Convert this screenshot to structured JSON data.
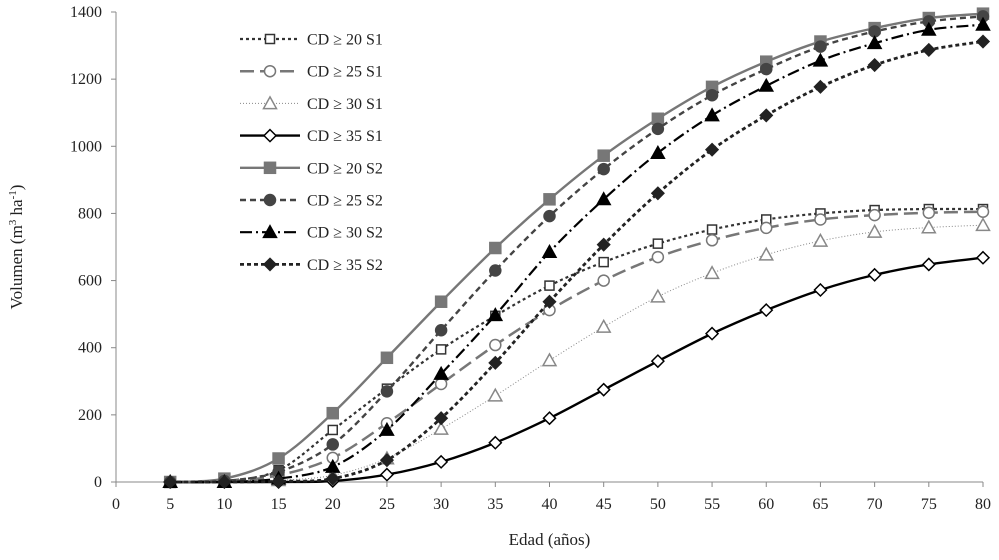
{
  "chart_data": {
    "type": "line",
    "xlabel": "Edad (años)",
    "ylabel_parts": [
      "Volumen (m",
      "3",
      " ha",
      "-1",
      ")"
    ],
    "xlim": [
      0,
      80
    ],
    "ylim": [
      0,
      1400
    ],
    "x_ticks": [
      0,
      5,
      10,
      15,
      20,
      25,
      30,
      35,
      40,
      45,
      50,
      55,
      60,
      65,
      70,
      75,
      80
    ],
    "y_ticks": [
      0,
      200,
      400,
      600,
      800,
      1000,
      1200,
      1400
    ],
    "grid": false,
    "legend_position": "top-left",
    "x": [
      5,
      10,
      15,
      20,
      25,
      30,
      35,
      40,
      45,
      50,
      55,
      60,
      65,
      70,
      75,
      80
    ],
    "series": [
      {
        "name": "CD ≥ 20 S1",
        "color": "#333333",
        "dash": "dotted",
        "marker": "square-open",
        "values": [
          0,
          3,
          35,
          155,
          278,
          395,
          495,
          585,
          655,
          710,
          752,
          782,
          800,
          810,
          813,
          813
        ]
      },
      {
        "name": "CD ≥ 25 S1",
        "color": "#777777",
        "dash": "long-dash",
        "marker": "circle-open",
        "values": [
          0,
          2,
          20,
          72,
          175,
          292,
          408,
          512,
          600,
          670,
          720,
          757,
          782,
          795,
          802,
          805
        ]
      },
      {
        "name": "CD ≥ 30 S1",
        "color": "#888888",
        "dash": "thin",
        "marker": "triangle-open",
        "values": [
          0,
          0,
          5,
          20,
          70,
          158,
          257,
          362,
          462,
          552,
          622,
          677,
          718,
          745,
          758,
          765
        ]
      },
      {
        "name": "CD ≥ 35 S1",
        "color": "#000000",
        "dash": "solid",
        "marker": "diamond-open",
        "values": [
          0,
          0,
          0,
          3,
          22,
          60,
          117,
          190,
          275,
          360,
          442,
          512,
          572,
          617,
          648,
          668
        ]
      },
      {
        "name": "CD ≥ 20 S2",
        "color": "#777777",
        "dash": "solid",
        "marker": "square-filled",
        "values": [
          0,
          10,
          70,
          205,
          370,
          537,
          697,
          842,
          972,
          1082,
          1177,
          1252,
          1312,
          1352,
          1382,
          1395
        ]
      },
      {
        "name": "CD ≥ 25 S2",
        "color": "#444444",
        "dash": "dashed",
        "marker": "circle-filled",
        "values": [
          0,
          3,
          30,
          112,
          270,
          452,
          630,
          792,
          932,
          1052,
          1152,
          1230,
          1297,
          1342,
          1372,
          1387
        ]
      },
      {
        "name": "CD ≥ 30 S2",
        "color": "#000000",
        "dash": "dash-dot",
        "marker": "triangle-filled",
        "values": [
          0,
          0,
          10,
          45,
          155,
          322,
          497,
          685,
          842,
          980,
          1092,
          1180,
          1255,
          1307,
          1347,
          1362
        ]
      },
      {
        "name": "CD ≥ 35 S2",
        "color": "#222222",
        "dash": "short-dash",
        "marker": "diamond-filled",
        "values": [
          0,
          0,
          2,
          10,
          65,
          190,
          355,
          537,
          707,
          860,
          990,
          1092,
          1177,
          1242,
          1287,
          1312
        ]
      }
    ]
  }
}
